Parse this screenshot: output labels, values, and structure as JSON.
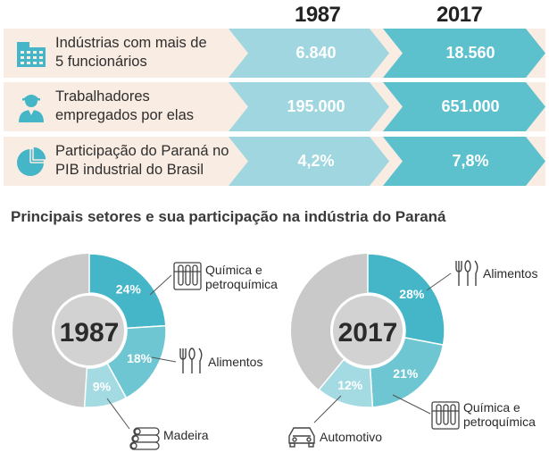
{
  "header": {
    "year_1": "1987",
    "year_2": "2017"
  },
  "rows": [
    {
      "label_lines": [
        "Indústrias com mais de",
        "5 funcionários"
      ],
      "v1": "6.840",
      "v2": "18.560",
      "icon": "factory-icon"
    },
    {
      "label_lines": [
        "Trabalhadores",
        "empregados por elas"
      ],
      "v1": "195.000",
      "v2": "651.000",
      "icon": "worker-icon"
    },
    {
      "label_lines": [
        "Participação do Paraná no",
        "PIB industrial do Brasil"
      ],
      "v1": "4,2%",
      "v2": "7,8%",
      "icon": "pie-chart-icon"
    }
  ],
  "colors": {
    "row_bg": "#f9ece3",
    "chev_1987": "#9fd6df",
    "chev_2017": "#5cc0cd",
    "donut_dark": "#45b6c8",
    "donut_mid": "#6ec6d2",
    "donut_light": "#a4dbe3",
    "donut_rest": "#c9c9c9",
    "center": "#d2d2d2"
  },
  "section_title": "Principais setores e sua participação na indústria do Paraná",
  "chart_data": [
    {
      "type": "pie",
      "center_label": "1987",
      "slices": [
        {
          "name": "Química e petroquímica",
          "name_lines": [
            "Química e",
            "petroquímica"
          ],
          "value": 24,
          "label": "24%",
          "icon": "test-tubes-icon"
        },
        {
          "name": "Alimentos",
          "name_lines": [
            "Alimentos"
          ],
          "value": 18,
          "label": "18%",
          "icon": "cutlery-icon"
        },
        {
          "name": "Madeira",
          "name_lines": [
            "Madeira"
          ],
          "value": 9,
          "label": "9%",
          "icon": "logs-icon"
        }
      ]
    },
    {
      "type": "pie",
      "center_label": "2017",
      "slices": [
        {
          "name": "Alimentos",
          "name_lines": [
            "Alimentos"
          ],
          "value": 28,
          "label": "28%",
          "icon": "cutlery-icon"
        },
        {
          "name": "Química e petroquímica",
          "name_lines": [
            "Química e",
            "petroquímica"
          ],
          "value": 21,
          "label": "21%",
          "icon": "test-tubes-icon"
        },
        {
          "name": "Automotivo",
          "name_lines": [
            "Automotivo"
          ],
          "value": 12,
          "label": "12%",
          "icon": "car-icon"
        }
      ]
    }
  ]
}
